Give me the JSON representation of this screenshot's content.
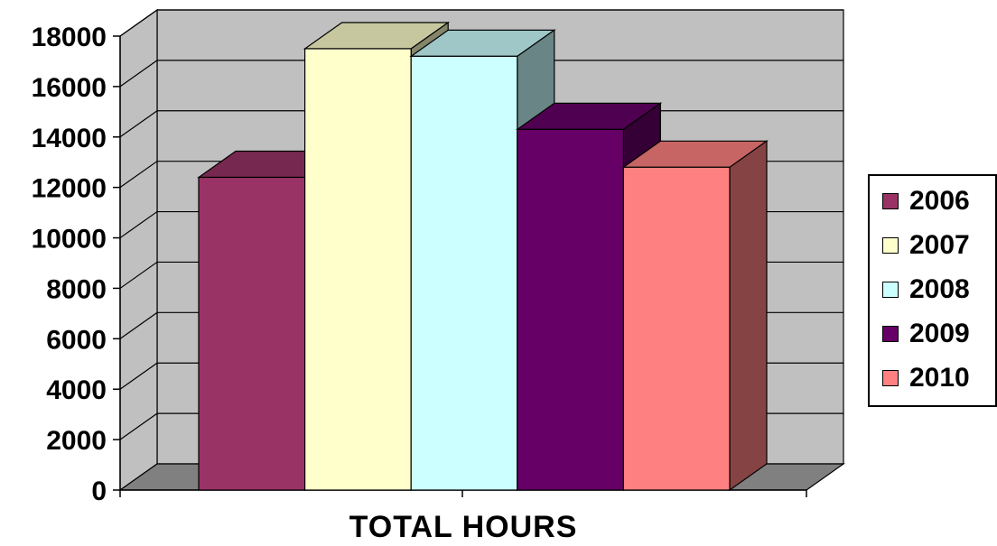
{
  "chart_data": {
    "type": "bar",
    "title": "",
    "xlabel": "TOTAL HOURS",
    "ylabel": "",
    "ylim": [
      0,
      18000
    ],
    "yticks": [
      0,
      2000,
      4000,
      6000,
      8000,
      10000,
      12000,
      14000,
      16000,
      18000
    ],
    "categories": [
      "TOTAL HOURS"
    ],
    "grid": true,
    "three_d": true,
    "legend_position": "right",
    "series": [
      {
        "name": "2006",
        "values": [
          12400
        ],
        "color": "#993366"
      },
      {
        "name": "2007",
        "values": [
          17500
        ],
        "color": "#FFFFCC"
      },
      {
        "name": "2008",
        "values": [
          17200
        ],
        "color": "#CCFFFF"
      },
      {
        "name": "2009",
        "values": [
          14300
        ],
        "color": "#660066"
      },
      {
        "name": "2010",
        "values": [
          12800
        ],
        "color": "#FF8080"
      }
    ]
  }
}
